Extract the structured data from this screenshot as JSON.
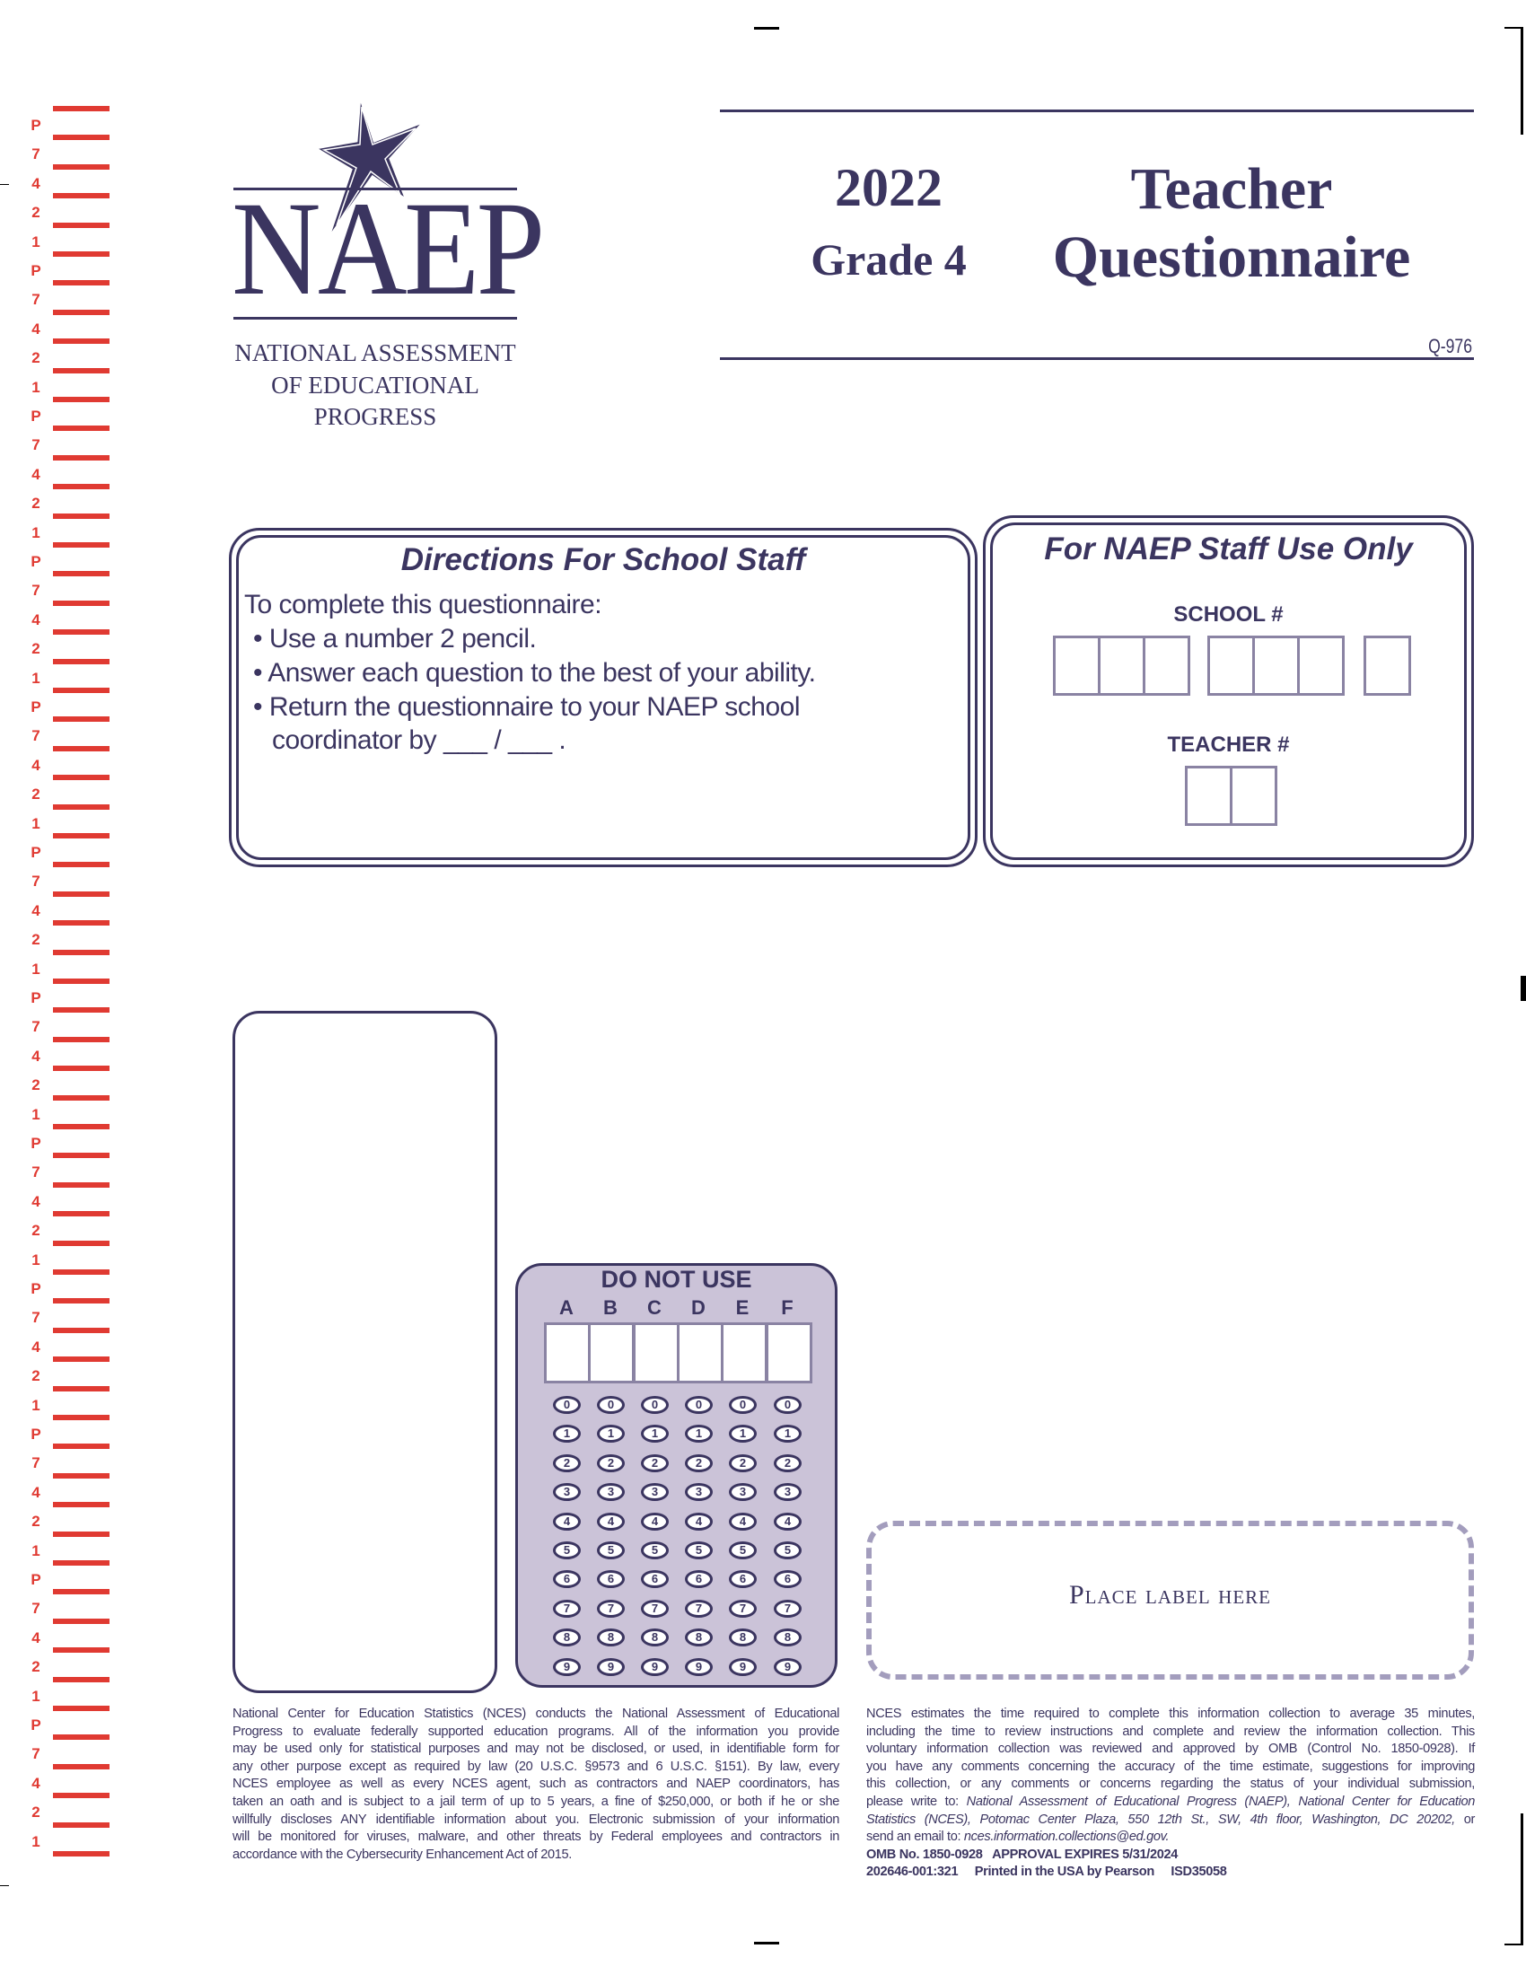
{
  "strip": {
    "labels_pattern": [
      "P",
      "7",
      "4",
      "2",
      "1"
    ],
    "cycles": 12,
    "color": "#e03a32"
  },
  "logo": {
    "wordmark": "NAEP",
    "lines": [
      "NATIONAL ASSESSMENT",
      "OF EDUCATIONAL",
      "PROGRESS"
    ]
  },
  "header": {
    "year": "2022",
    "grade": "Grade 4",
    "title_line1": "Teacher",
    "title_line2": "Questionnaire",
    "form_code": "Q-976"
  },
  "directions": {
    "title": "Directions For School Staff",
    "intro": "To complete this questionnaire:",
    "bullets": [
      "Use a number 2 pencil.",
      "Answer each question to the best of your ability.",
      "Return the questionnaire to your NAEP school"
    ],
    "continuation": "coordinator by ___ / ___ ."
  },
  "staff": {
    "title": "For NAEP Staff Use Only",
    "school_label": "SCHOOL #",
    "teacher_label": "TEACHER #"
  },
  "do_not_use": {
    "title": "DO NOT USE",
    "columns": [
      "A",
      "B",
      "C",
      "D",
      "E",
      "F"
    ],
    "digits": [
      "0",
      "1",
      "2",
      "3",
      "4",
      "5",
      "6",
      "7",
      "8",
      "9"
    ],
    "fill_color": "#cbc3d8"
  },
  "label_box": {
    "text": "Place label here"
  },
  "footer_left": [
    "National Center for Education Statistics (NCES) conducts the National Assessment of Educational",
    "Progress to evaluate federally supported education programs. All of the information you provide",
    "may be used only for statistical purposes and may not be disclosed, or used, in identifiable form for",
    "any other purpose except as required by law (20 U.S.C. §9573 and 6 U.S.C. §151). By law, every",
    "NCES employee as well as every NCES agent, such as contractors and NAEP coordinators, has",
    "taken an oath and is subject to a jail term of up to 5 years, a fine of $250,000, or both if he or she",
    "willfully discloses ANY identifiable information about you. Electronic submission of your information",
    "will be monitored for viruses, malware, and other threats by Federal employees and contractors in",
    "accordance with the Cybersecurity Enhancement Act of 2015."
  ],
  "footer_right": [
    "NCES estimates the time required to complete this information collection to average 35 minutes,",
    "including the time to review instructions and complete and review the information collection. This",
    "voluntary information collection was reviewed and approved by OMB (Control No. 1850-0928). If",
    "you have any comments concerning the accuracy of the time estimate, suggestions for improving",
    "this collection, or any comments or concerns regarding the status of your individual submission,"
  ],
  "footer_right_italic": {
    "line6_prefix": "please write to: ",
    "line6_italic": "National Assessment of Educational Progress (NAEP), National Center for Education",
    "line7_italic": "Statistics (NCES), Potomac Center Plaza, 550 12th St., SW, 4th floor, Washington, DC 20202,",
    "line7_suffix": " or",
    "line8_prefix": "send an email to: ",
    "line8_italic": "nces.information.collections@ed.gov."
  },
  "footer_bold": {
    "omb": "OMB No. 1850-0928   APPROVAL EXPIRES 5/31/2024",
    "print": "202646-001:321     Printed in the USA by Pearson     ISD35058"
  }
}
